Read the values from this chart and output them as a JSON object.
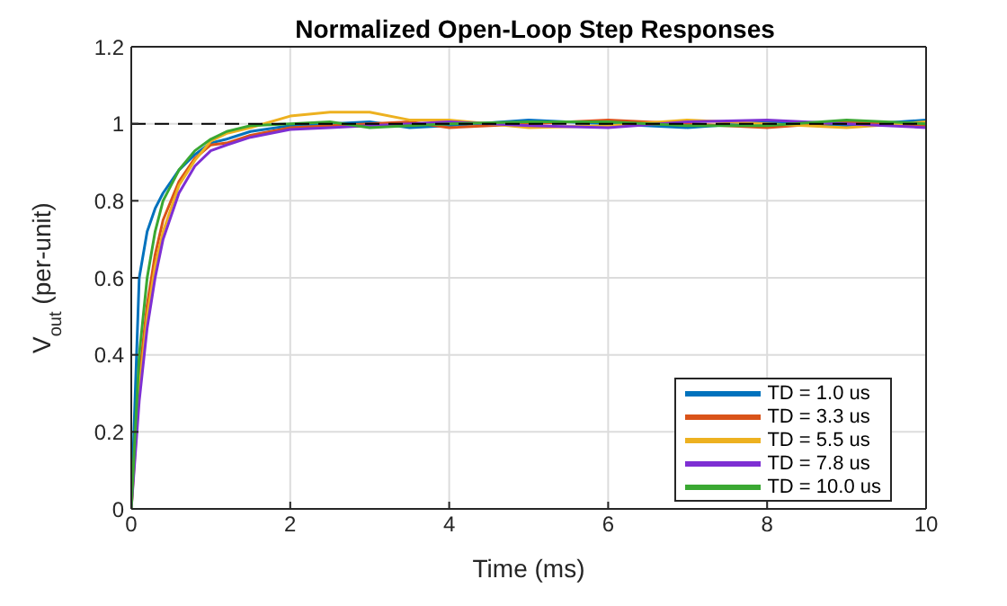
{
  "chart_data": {
    "type": "line",
    "title": "Normalized Open-Loop Step Responses",
    "xlabel": "Time (ms)",
    "ylabel": "V$_{out}$ (per-unit)",
    "x": [
      0,
      0.1,
      0.2,
      0.3,
      0.4,
      0.6,
      0.8,
      1,
      1.2,
      1.5,
      2,
      2.5,
      3,
      3.5,
      4,
      5,
      6,
      7,
      8,
      9,
      10
    ],
    "series": [
      {
        "name": "TD = 1.0 us",
        "color": "#0072bd",
        "values": [
          0,
          0.6,
          0.72,
          0.78,
          0.82,
          0.88,
          0.92,
          0.95,
          0.96,
          0.98,
          0.995,
          1,
          1.005,
          0.99,
          0.995,
          1.01,
          1,
          0.99,
          1.005,
          0.995,
          1.01
        ]
      },
      {
        "name": "TD = 3.3 us",
        "color": "#d95319",
        "values": [
          0,
          0.34,
          0.53,
          0.66,
          0.75,
          0.85,
          0.91,
          0.945,
          0.95,
          0.97,
          0.99,
          0.995,
          1,
          1.005,
          0.99,
          1,
          1.01,
          1,
          0.99,
          1.005,
          0.995
        ]
      },
      {
        "name": "TD = 5.5 us",
        "color": "#edb120",
        "values": [
          0,
          0.31,
          0.5,
          0.63,
          0.72,
          0.84,
          0.905,
          0.955,
          0.975,
          0.99,
          1.02,
          1.03,
          1.03,
          1.01,
          1.01,
          0.99,
          0.995,
          1.01,
          1,
          0.99,
          1.005
        ]
      },
      {
        "name": "TD = 7.8 us",
        "color": "#7e2fd3",
        "values": [
          0,
          0.28,
          0.47,
          0.6,
          0.7,
          0.82,
          0.89,
          0.93,
          0.945,
          0.965,
          0.985,
          0.99,
          0.995,
          1,
          1.005,
          0.995,
          0.99,
          1.005,
          1.01,
          1,
          0.99
        ]
      },
      {
        "name": "TD = 10.0 us",
        "color": "#3aa832",
        "values": [
          0,
          0.4,
          0.6,
          0.72,
          0.8,
          0.88,
          0.93,
          0.96,
          0.98,
          0.995,
          1,
          1.005,
          0.99,
          0.995,
          1,
          1.005,
          1.005,
          0.995,
          0.995,
          1.01,
          1
        ]
      }
    ],
    "xlim": [
      0,
      10
    ],
    "xticks": [
      0,
      2,
      4,
      6,
      8,
      10
    ],
    "ylim": [
      0,
      1.2
    ],
    "yticks": [
      0,
      0.2,
      0.4,
      0.6,
      0.8,
      1,
      1.2
    ],
    "ref_lines": [
      {
        "axis": "y",
        "value": 1,
        "color": "#000000",
        "line_style": "dashed"
      }
    ],
    "grid": true,
    "legend": "bottom right",
    "line_style": "solid",
    "marker": "none"
  }
}
